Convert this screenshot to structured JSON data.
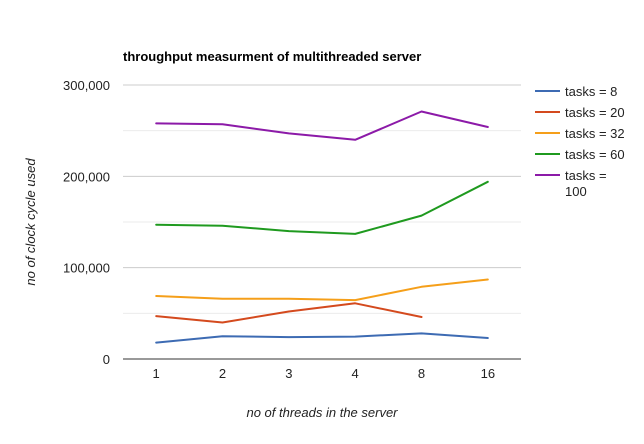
{
  "chart_data": {
    "type": "line",
    "title": "throughput measurment of multithreaded server",
    "xlabel": "no of threads in the server",
    "ylabel": "no of clock cycle used",
    "categories": [
      "1",
      "2",
      "3",
      "4",
      "8",
      "16"
    ],
    "ylim": [
      0,
      300000
    ],
    "y_ticks": [
      0,
      100000,
      200000,
      300000
    ],
    "y_tick_labels": [
      "0",
      "100,000",
      "200,000",
      "300,000"
    ],
    "grid": true,
    "legend_position": "right",
    "series": [
      {
        "name": "tasks = 8",
        "legend_lines": [
          "tasks = 8"
        ],
        "color": "#3d6bb3",
        "values": [
          18000,
          25000,
          24000,
          24500,
          28000,
          23000
        ]
      },
      {
        "name": "tasks = 20",
        "legend_lines": [
          "tasks = 20"
        ],
        "color": "#d44a1e",
        "values": [
          47000,
          40000,
          52000,
          61000,
          46000,
          null
        ]
      },
      {
        "name": "tasks = 32",
        "legend_lines": [
          "tasks = 32"
        ],
        "color": "#f59f1a",
        "values": [
          69000,
          66000,
          66000,
          64500,
          79000,
          87000
        ]
      },
      {
        "name": "tasks = 60",
        "legend_lines": [
          "tasks = 60"
        ],
        "color": "#1f9a1f",
        "values": [
          147000,
          146000,
          140000,
          137000,
          157000,
          194000
        ]
      },
      {
        "name": "tasks = 100",
        "legend_lines": [
          "tasks =",
          "100"
        ],
        "color": "#8c1aa8",
        "values": [
          258000,
          257000,
          247000,
          240000,
          271000,
          254000
        ]
      }
    ]
  }
}
